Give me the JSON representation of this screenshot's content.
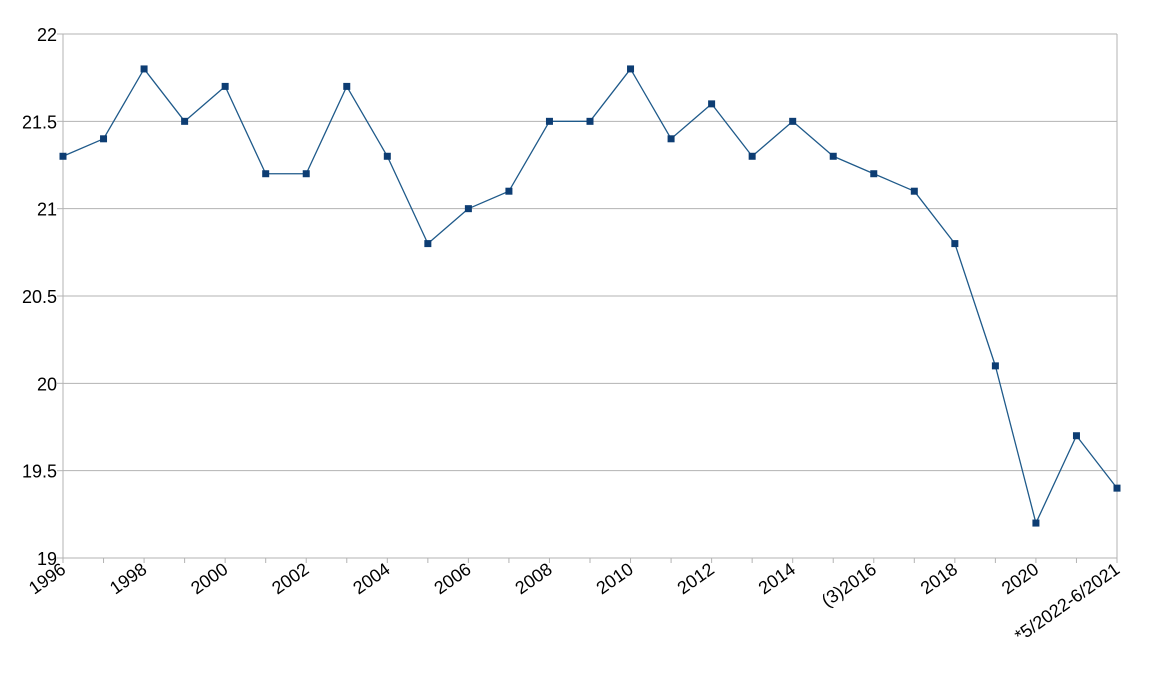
{
  "chart_data": {
    "type": "line",
    "title": "",
    "xlabel": "",
    "ylabel": "",
    "ylim": [
      19,
      22
    ],
    "yticks": [
      19,
      19.5,
      20,
      20.5,
      21,
      21.5,
      22
    ],
    "ytick_labels": [
      "19",
      "19.5",
      "20",
      "20.5",
      "21",
      "21.5",
      "22"
    ],
    "grid": true,
    "legend": "none",
    "series_color": "#1f5a8a",
    "marker_color": "#0d3d73",
    "grid_color": "#b3b3b3",
    "categories": [
      "1996",
      "1997",
      "1998",
      "1999",
      "2000",
      "2001",
      "2002",
      "2003",
      "2004",
      "2005",
      "2006",
      "2007",
      "2008",
      "2009",
      "2010",
      "2011",
      "2012",
      "2013",
      "2014",
      "2015",
      "(3)2016",
      "2017",
      "2018",
      "2019",
      "2020",
      "2021",
      "*5/2022-6/2021"
    ],
    "tick_labels": [
      "1996",
      "",
      "1998",
      "",
      "2000",
      "",
      "2002",
      "",
      "2004",
      "",
      "2006",
      "",
      "2008",
      "",
      "2010",
      "",
      "2012",
      "",
      "2014",
      "",
      "(3)2016",
      "",
      "2018",
      "",
      "2020",
      "",
      "*5/2022-6/2021"
    ],
    "values": [
      21.3,
      21.4,
      21.8,
      21.5,
      21.7,
      21.2,
      21.2,
      21.7,
      21.3,
      20.8,
      21.0,
      21.1,
      21.5,
      21.5,
      21.8,
      21.4,
      21.6,
      21.3,
      21.5,
      21.3,
      21.2,
      21.1,
      20.8,
      20.1,
      19.2,
      19.7,
      19.4
    ]
  }
}
